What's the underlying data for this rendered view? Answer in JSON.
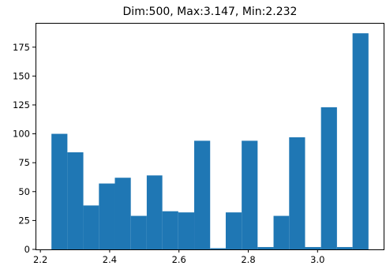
{
  "chart_data": {
    "type": "bar",
    "title": "Dim:500, Max:3.147, Min:2.232",
    "xlabel": "",
    "ylabel": "",
    "xlim": [
      2.186,
      3.193
    ],
    "ylim": [
      0,
      196
    ],
    "grid": false,
    "legend": "none",
    "bar_color": "#1f77b4",
    "x_ticks": [
      {
        "value": 2.2,
        "label": "2.2"
      },
      {
        "value": 2.4,
        "label": "2.4"
      },
      {
        "value": 2.6,
        "label": "2.6"
      },
      {
        "value": 2.8,
        "label": "2.8"
      },
      {
        "value": 3.0,
        "label": "3.0"
      }
    ],
    "y_ticks": [
      {
        "value": 0,
        "label": "0"
      },
      {
        "value": 25,
        "label": "25"
      },
      {
        "value": 50,
        "label": "50"
      },
      {
        "value": 75,
        "label": "75"
      },
      {
        "value": 100,
        "label": "100"
      },
      {
        "value": 125,
        "label": "125"
      },
      {
        "value": 150,
        "label": "150"
      },
      {
        "value": 175,
        "label": "175"
      }
    ],
    "bins": [
      {
        "x0": 2.232,
        "x1": 2.278,
        "value": 100
      },
      {
        "x0": 2.278,
        "x1": 2.324,
        "value": 84
      },
      {
        "x0": 2.324,
        "x1": 2.369,
        "value": 38
      },
      {
        "x0": 2.369,
        "x1": 2.415,
        "value": 57
      },
      {
        "x0": 2.415,
        "x1": 2.461,
        "value": 62
      },
      {
        "x0": 2.461,
        "x1": 2.507,
        "value": 29
      },
      {
        "x0": 2.507,
        "x1": 2.552,
        "value": 64
      },
      {
        "x0": 2.552,
        "x1": 2.598,
        "value": 33
      },
      {
        "x0": 2.598,
        "x1": 2.644,
        "value": 32
      },
      {
        "x0": 2.644,
        "x1": 2.69,
        "value": 94
      },
      {
        "x0": 2.69,
        "x1": 2.735,
        "value": 1
      },
      {
        "x0": 2.735,
        "x1": 2.781,
        "value": 32
      },
      {
        "x0": 2.781,
        "x1": 2.827,
        "value": 94
      },
      {
        "x0": 2.827,
        "x1": 2.873,
        "value": 2
      },
      {
        "x0": 2.873,
        "x1": 2.918,
        "value": 29
      },
      {
        "x0": 2.918,
        "x1": 2.964,
        "value": 97
      },
      {
        "x0": 2.964,
        "x1": 3.01,
        "value": 2
      },
      {
        "x0": 3.01,
        "x1": 3.056,
        "value": 123
      },
      {
        "x0": 3.056,
        "x1": 3.101,
        "value": 2
      },
      {
        "x0": 3.101,
        "x1": 3.147,
        "value": 187
      }
    ]
  }
}
